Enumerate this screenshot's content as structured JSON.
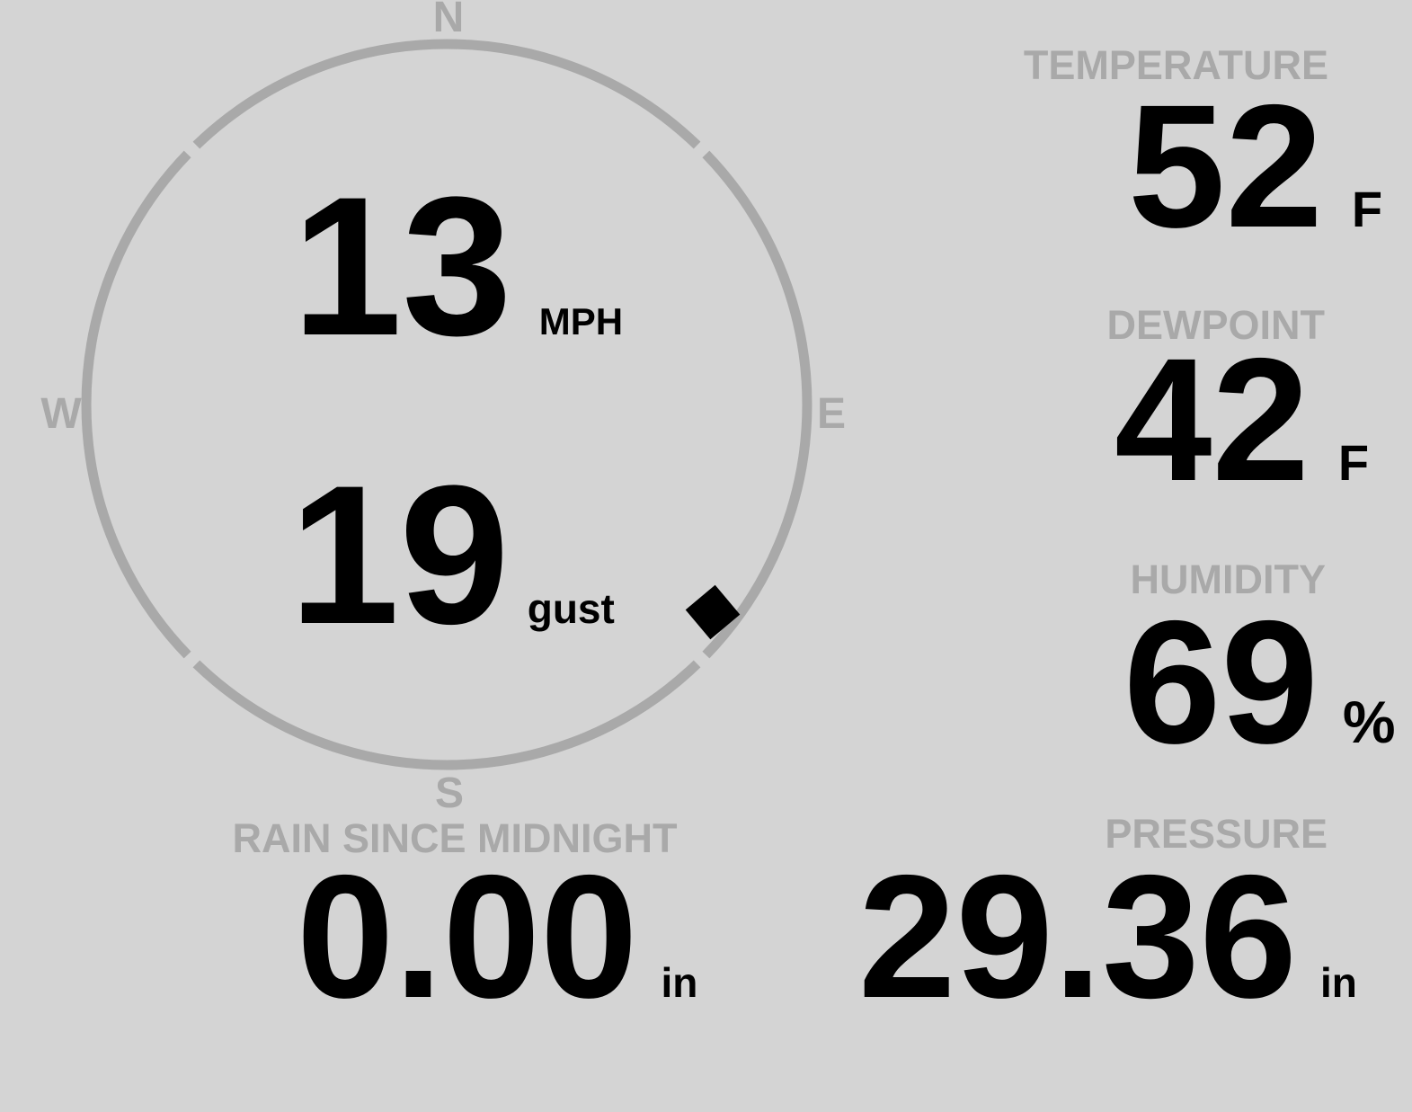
{
  "display": {
    "colors": {
      "background": "#d4d4d4",
      "muted": "#a9a9a9",
      "text": "#000000"
    },
    "wind": {
      "speed": "13",
      "speed_unit": "MPH",
      "gust": "19",
      "gust_unit": "gust",
      "direction_degrees": 128,
      "compass": {
        "north": "N",
        "east": "E",
        "south": "S",
        "west": "W"
      }
    },
    "metrics": {
      "temperature": {
        "label": "TEMPERATURE",
        "value": "52",
        "unit": "F"
      },
      "dewpoint": {
        "label": "DEWPOINT",
        "value": "42",
        "unit": "F"
      },
      "humidity": {
        "label": "HUMIDITY",
        "value": "69",
        "unit": "%"
      },
      "rain": {
        "label": "RAIN SINCE MIDNIGHT",
        "value": "0.00",
        "unit": "in"
      },
      "pressure": {
        "label": "PRESSURE",
        "value": "29.36",
        "unit": "in"
      }
    }
  }
}
